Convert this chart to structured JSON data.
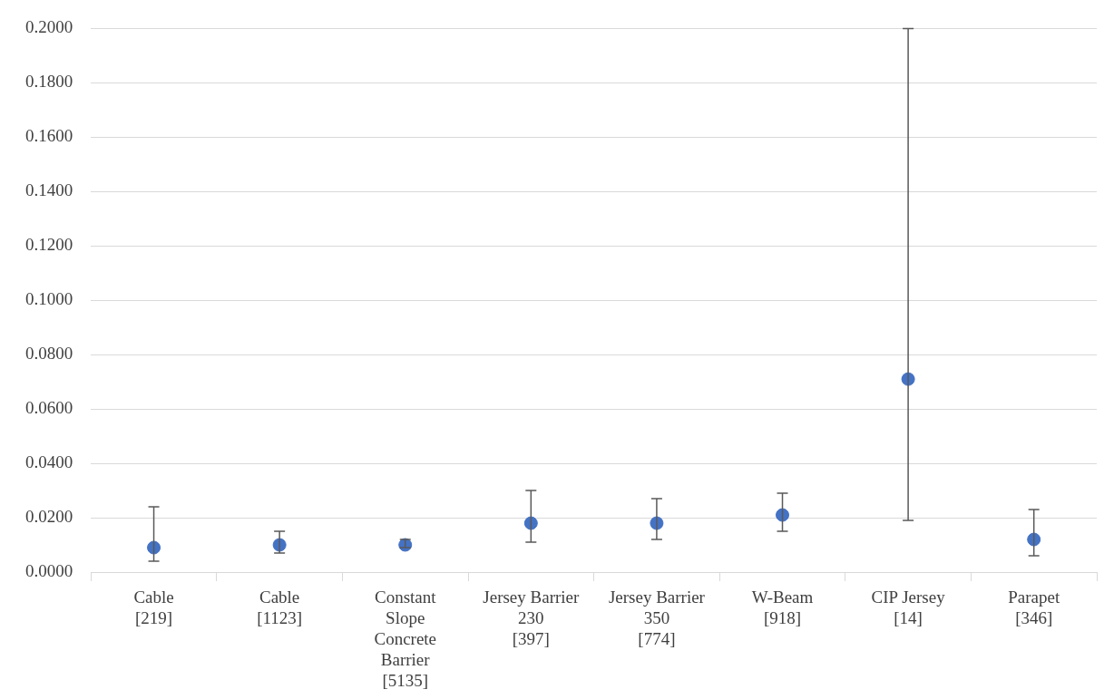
{
  "chart_data": {
    "type": "scatter",
    "categories": [
      "Cable\n[219]",
      "Cable\n[1123]",
      "Constant\nSlope\nConcrete\nBarrier\n[5135]",
      "Jersey Barrier\n230\n[397]",
      "Jersey Barrier\n350\n[774]",
      "W-Beam\n[918]",
      "CIP Jersey\n[14]",
      "Parapet\n[346]"
    ],
    "series": [
      {
        "color": "#4472c4",
        "values": [
          0.009,
          0.01,
          0.01,
          0.018,
          0.018,
          0.021,
          0.071,
          0.012
        ],
        "errors": [
          [
            0.004,
            0.024
          ],
          [
            0.007,
            0.015
          ],
          [
            0.009,
            0.012
          ],
          [
            0.011,
            0.03
          ],
          [
            0.012,
            0.027
          ],
          [
            0.015,
            0.029
          ],
          [
            0.019,
            0.2
          ],
          [
            0.006,
            0.023
          ]
        ]
      }
    ],
    "ylim": [
      0,
      0.2
    ],
    "yticks": [
      {
        "value": 0,
        "label": "0.0000"
      },
      {
        "value": 0.02,
        "label": "0.0200"
      },
      {
        "value": 0.04,
        "label": "0.0400"
      },
      {
        "value": 0.06,
        "label": "0.0600"
      },
      {
        "value": 0.08,
        "label": "0.0800"
      },
      {
        "value": 0.1,
        "label": "0.1000"
      },
      {
        "value": 0.12,
        "label": "0.1200"
      },
      {
        "value": 0.14,
        "label": "0.1400"
      },
      {
        "value": 0.16,
        "label": "0.1600"
      },
      {
        "value": 0.18,
        "label": "0.1800"
      },
      {
        "value": 0.2,
        "label": "0.2000"
      }
    ],
    "grid": "y",
    "legend": false,
    "marker": "circle"
  }
}
